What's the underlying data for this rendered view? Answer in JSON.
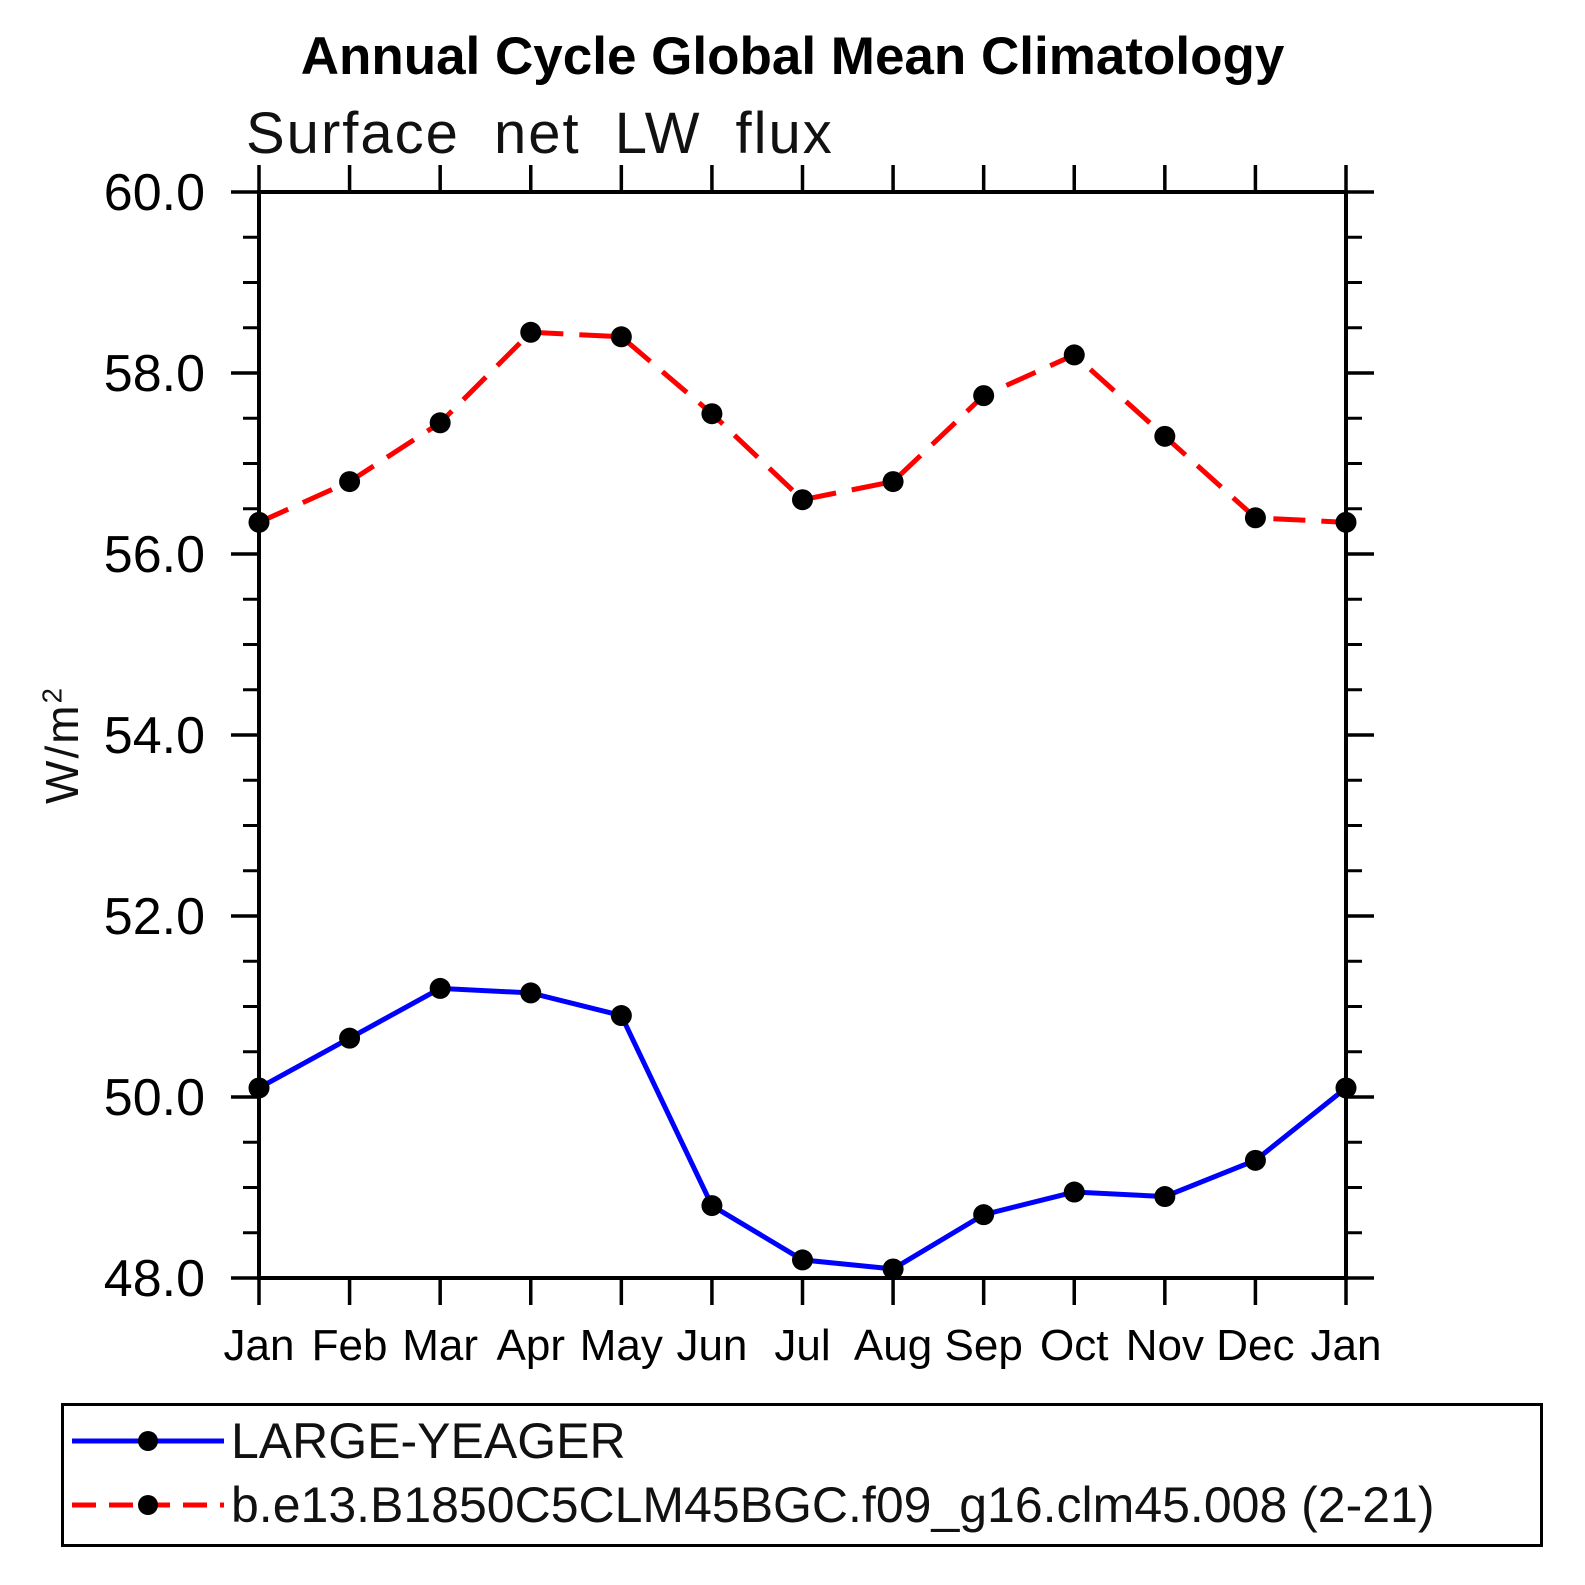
{
  "page": {
    "title": "Annual Cycle Global Mean Climatology",
    "subtitle": "Surface net LW flux"
  },
  "ylabel": {
    "base": "W/m",
    "exponent": "2"
  },
  "legend": {
    "entries": [
      {
        "label": "LARGE-YEAGER",
        "color": "#0000ff",
        "style": "solid",
        "marker_color": "#000000"
      },
      {
        "label": "b.e13.B1850C5CLM45BGC.f09_g16.clm45.008 (2-21)",
        "color": "#ff0000",
        "style": "dashed",
        "marker_color": "#000000"
      }
    ]
  },
  "chart_data": {
    "type": "line",
    "title": "Annual Cycle Global Mean Climatology",
    "subtitle": "Surface net LW flux",
    "ylabel": "W/m^2",
    "categories": [
      "Jan",
      "Feb",
      "Mar",
      "Apr",
      "May",
      "Jun",
      "Jul",
      "Aug",
      "Sep",
      "Oct",
      "Nov",
      "Dec",
      "Jan"
    ],
    "series": [
      {
        "name": "LARGE-YEAGER",
        "color": "#0000ff",
        "style": "solid",
        "marker": "circle",
        "marker_color": "#000000",
        "values": [
          50.1,
          50.65,
          51.2,
          51.15,
          50.9,
          48.8,
          48.2,
          48.1,
          48.7,
          48.95,
          48.9,
          49.3,
          50.1
        ]
      },
      {
        "name": "b.e13.B1850C5CLM45BGC.f09_g16.clm45.008 (2-21)",
        "color": "#ff0000",
        "style": "dashed",
        "marker": "circle",
        "marker_color": "#000000",
        "values": [
          56.35,
          56.8,
          57.45,
          58.45,
          58.4,
          57.55,
          56.6,
          56.8,
          57.75,
          58.2,
          57.3,
          56.4,
          56.35
        ]
      }
    ],
    "ylim": [
      48.0,
      60.0
    ],
    "ytick_major_step": 2.0,
    "ytick_minor_step": 0.5,
    "ytick_values": [
      48,
      50,
      52,
      54,
      56,
      58,
      60
    ],
    "ytick_labels": [
      "48.0",
      "50.0",
      "52.0",
      "54.0",
      "56.0",
      "58.0",
      "60.0"
    ],
    "grid": false,
    "legend_position": "bottom-left"
  }
}
